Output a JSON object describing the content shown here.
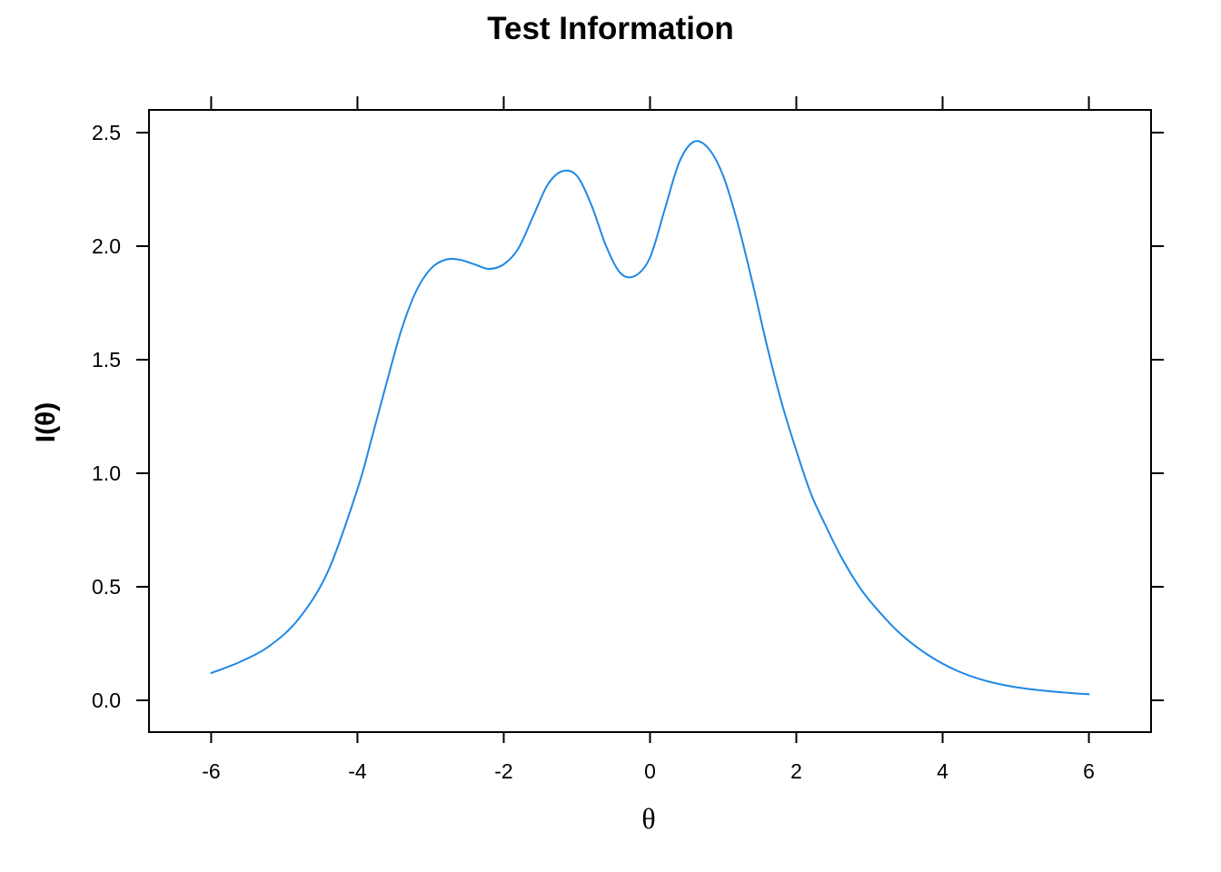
{
  "chart_data": {
    "type": "line",
    "title": "Test Information",
    "xlabel": "θ",
    "ylabel": "I(θ)",
    "xlim": [
      -6.85,
      6.85
    ],
    "ylim": [
      -0.14,
      2.6
    ],
    "x_ticks": [
      -6,
      -4,
      -2,
      0,
      2,
      4,
      6
    ],
    "x_tick_labels": [
      "-6",
      "-4",
      "-2",
      "0",
      "2",
      "4",
      "6"
    ],
    "y_ticks": [
      0.0,
      0.5,
      1.0,
      1.5,
      2.0,
      2.5
    ],
    "y_tick_labels": [
      "0.0",
      "0.5",
      "1.0",
      "1.5",
      "2.0",
      "2.5"
    ],
    "grid": false,
    "legend": "none",
    "series": [
      {
        "color": "#1E88E5",
        "x": [
          -6.0,
          -5.6,
          -5.2,
          -4.8,
          -4.4,
          -4.0,
          -3.8,
          -3.6,
          -3.4,
          -3.2,
          -3.0,
          -2.8,
          -2.6,
          -2.4,
          -2.2,
          -2.0,
          -1.8,
          -1.6,
          -1.4,
          -1.2,
          -1.0,
          -0.8,
          -0.6,
          -0.4,
          -0.2,
          0.0,
          0.2,
          0.4,
          0.6,
          0.8,
          1.0,
          1.2,
          1.4,
          1.6,
          1.8,
          2.0,
          2.2,
          2.4,
          2.6,
          2.8,
          3.0,
          3.4,
          3.8,
          4.2,
          4.6,
          5.0,
          5.4,
          5.8,
          6.0
        ],
        "y": [
          0.12,
          0.17,
          0.24,
          0.36,
          0.57,
          0.93,
          1.16,
          1.4,
          1.63,
          1.8,
          1.9,
          1.94,
          1.94,
          1.92,
          1.9,
          1.92,
          1.99,
          2.13,
          2.27,
          2.33,
          2.31,
          2.18,
          2.0,
          1.88,
          1.87,
          1.95,
          2.16,
          2.37,
          2.46,
          2.43,
          2.31,
          2.1,
          1.84,
          1.56,
          1.31,
          1.1,
          0.91,
          0.77,
          0.64,
          0.53,
          0.44,
          0.3,
          0.2,
          0.13,
          0.085,
          0.058,
          0.042,
          0.031,
          0.027
        ]
      }
    ]
  }
}
